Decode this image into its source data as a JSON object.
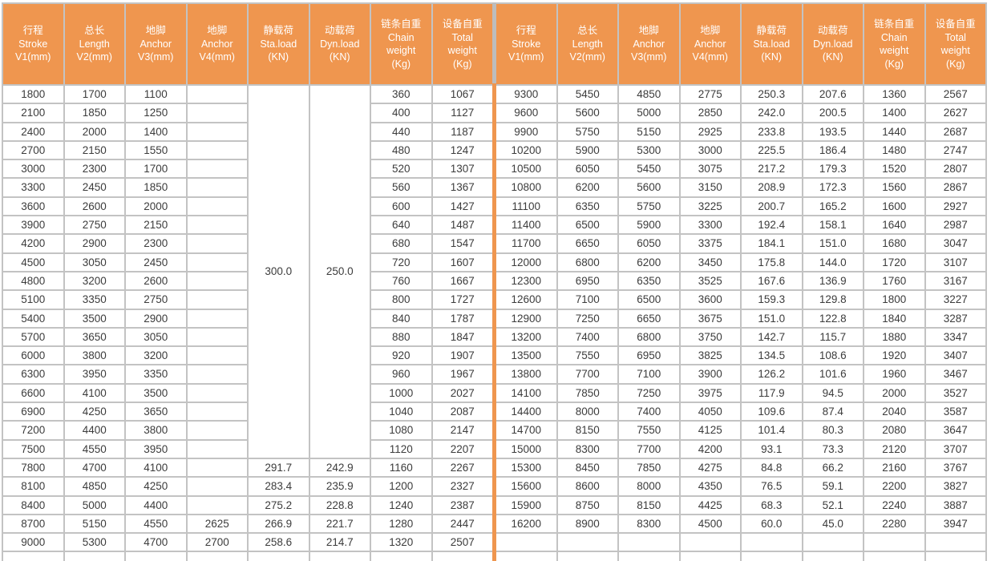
{
  "colors": {
    "header_bg": "#EF964F",
    "header_text": "#FFFFFF",
    "grid": "#C3C3C3",
    "center_divider": "#EF964F",
    "cell_bg": "#FFFFFF",
    "cell_text": "#3C3C3C"
  },
  "table": {
    "columns": [
      {
        "key": "stroke-v1",
        "lines": [
          "行程",
          "Stroke",
          "V1(mm)"
        ]
      },
      {
        "key": "length-v2",
        "lines": [
          "总长",
          "Length",
          "V2(mm)"
        ]
      },
      {
        "key": "anchor-v3",
        "lines": [
          "地脚",
          "Anchor",
          "V3(mm)"
        ]
      },
      {
        "key": "anchor-v4",
        "lines": [
          "地脚",
          "Anchor",
          "V4(mm)"
        ]
      },
      {
        "key": "sta-load",
        "lines": [
          "静载荷",
          "Sta.load",
          "(KN)"
        ]
      },
      {
        "key": "dyn-load",
        "lines": [
          "动载荷",
          "Dyn.load",
          "(KN)"
        ]
      },
      {
        "key": "chain-weight",
        "lines": [
          "链条自重",
          "Chain",
          "weight",
          "(Kg)"
        ]
      },
      {
        "key": "total-weight",
        "lines": [
          "设备自重",
          "Total",
          "weight",
          "(Kg)"
        ]
      }
    ],
    "left": {
      "merged": {
        "sta_load": "300.0",
        "dyn_load": "250.0",
        "row_span": 20
      },
      "rows": [
        [
          "1800",
          "1700",
          "1100",
          "",
          null,
          null,
          "360",
          "1067"
        ],
        [
          "2100",
          "1850",
          "1250",
          "",
          null,
          null,
          "400",
          "1127"
        ],
        [
          "2400",
          "2000",
          "1400",
          "",
          null,
          null,
          "440",
          "1187"
        ],
        [
          "2700",
          "2150",
          "1550",
          "",
          null,
          null,
          "480",
          "1247"
        ],
        [
          "3000",
          "2300",
          "1700",
          "",
          null,
          null,
          "520",
          "1307"
        ],
        [
          "3300",
          "2450",
          "1850",
          "",
          null,
          null,
          "560",
          "1367"
        ],
        [
          "3600",
          "2600",
          "2000",
          "",
          null,
          null,
          "600",
          "1427"
        ],
        [
          "3900",
          "2750",
          "2150",
          "",
          null,
          null,
          "640",
          "1487"
        ],
        [
          "4200",
          "2900",
          "2300",
          "",
          null,
          null,
          "680",
          "1547"
        ],
        [
          "4500",
          "3050",
          "2450",
          "",
          null,
          null,
          "720",
          "1607"
        ],
        [
          "4800",
          "3200",
          "2600",
          "",
          null,
          null,
          "760",
          "1667"
        ],
        [
          "5100",
          "3350",
          "2750",
          "",
          null,
          null,
          "800",
          "1727"
        ],
        [
          "5400",
          "3500",
          "2900",
          "",
          null,
          null,
          "840",
          "1787"
        ],
        [
          "5700",
          "3650",
          "3050",
          "",
          null,
          null,
          "880",
          "1847"
        ],
        [
          "6000",
          "3800",
          "3200",
          "",
          null,
          null,
          "920",
          "1907"
        ],
        [
          "6300",
          "3950",
          "3350",
          "",
          null,
          null,
          "960",
          "1967"
        ],
        [
          "6600",
          "4100",
          "3500",
          "",
          null,
          null,
          "1000",
          "2027"
        ],
        [
          "6900",
          "4250",
          "3650",
          "",
          null,
          null,
          "1040",
          "2087"
        ],
        [
          "7200",
          "4400",
          "3800",
          "",
          null,
          null,
          "1080",
          "2147"
        ],
        [
          "7500",
          "4550",
          "3950",
          "",
          null,
          null,
          "1120",
          "2207"
        ],
        [
          "7800",
          "4700",
          "4100",
          "",
          "291.7",
          "242.9",
          "1160",
          "2267"
        ],
        [
          "8100",
          "4850",
          "4250",
          "",
          "283.4",
          "235.9",
          "1200",
          "2327"
        ],
        [
          "8400",
          "5000",
          "4400",
          "",
          "275.2",
          "228.8",
          "1240",
          "2387"
        ],
        [
          "8700",
          "5150",
          "4550",
          "2625",
          "266.9",
          "221.7",
          "1280",
          "2447"
        ],
        [
          "9000",
          "5300",
          "4700",
          "2700",
          "258.6",
          "214.7",
          "1320",
          "2507"
        ]
      ]
    },
    "right": {
      "rows": [
        [
          "9300",
          "5450",
          "4850",
          "2775",
          "250.3",
          "207.6",
          "1360",
          "2567"
        ],
        [
          "9600",
          "5600",
          "5000",
          "2850",
          "242.0",
          "200.5",
          "1400",
          "2627"
        ],
        [
          "9900",
          "5750",
          "5150",
          "2925",
          "233.8",
          "193.5",
          "1440",
          "2687"
        ],
        [
          "10200",
          "5900",
          "5300",
          "3000",
          "225.5",
          "186.4",
          "1480",
          "2747"
        ],
        [
          "10500",
          "6050",
          "5450",
          "3075",
          "217.2",
          "179.3",
          "1520",
          "2807"
        ],
        [
          "10800",
          "6200",
          "5600",
          "3150",
          "208.9",
          "172.3",
          "1560",
          "2867"
        ],
        [
          "11100",
          "6350",
          "5750",
          "3225",
          "200.7",
          "165.2",
          "1600",
          "2927"
        ],
        [
          "11400",
          "6500",
          "5900",
          "3300",
          "192.4",
          "158.1",
          "1640",
          "2987"
        ],
        [
          "11700",
          "6650",
          "6050",
          "3375",
          "184.1",
          "151.0",
          "1680",
          "3047"
        ],
        [
          "12000",
          "6800",
          "6200",
          "3450",
          "175.8",
          "144.0",
          "1720",
          "3107"
        ],
        [
          "12300",
          "6950",
          "6350",
          "3525",
          "167.6",
          "136.9",
          "1760",
          "3167"
        ],
        [
          "12600",
          "7100",
          "6500",
          "3600",
          "159.3",
          "129.8",
          "1800",
          "3227"
        ],
        [
          "12900",
          "7250",
          "6650",
          "3675",
          "151.0",
          "122.8",
          "1840",
          "3287"
        ],
        [
          "13200",
          "7400",
          "6800",
          "3750",
          "142.7",
          "115.7",
          "1880",
          "3347"
        ],
        [
          "13500",
          "7550",
          "6950",
          "3825",
          "134.5",
          "108.6",
          "1920",
          "3407"
        ],
        [
          "13800",
          "7700",
          "7100",
          "3900",
          "126.2",
          "101.6",
          "1960",
          "3467"
        ],
        [
          "14100",
          "7850",
          "7250",
          "3975",
          "117.9",
          "94.5",
          "2000",
          "3527"
        ],
        [
          "14400",
          "8000",
          "7400",
          "4050",
          "109.6",
          "87.4",
          "2040",
          "3587"
        ],
        [
          "14700",
          "8150",
          "7550",
          "4125",
          "101.4",
          "80.3",
          "2080",
          "3647"
        ],
        [
          "15000",
          "8300",
          "7700",
          "4200",
          "93.1",
          "73.3",
          "2120",
          "3707"
        ],
        [
          "15300",
          "8450",
          "7850",
          "4275",
          "84.8",
          "66.2",
          "2160",
          "3767"
        ],
        [
          "15600",
          "8600",
          "8000",
          "4350",
          "76.5",
          "59.1",
          "2200",
          "3827"
        ],
        [
          "15900",
          "8750",
          "8150",
          "4425",
          "68.3",
          "52.1",
          "2240",
          "3887"
        ],
        [
          "16200",
          "8900",
          "8300",
          "4500",
          "60.0",
          "45.0",
          "2280",
          "3947"
        ],
        [
          "",
          "",
          "",
          "",
          "",
          "",
          "",
          ""
        ]
      ]
    },
    "partial_bottom_row": true
  }
}
